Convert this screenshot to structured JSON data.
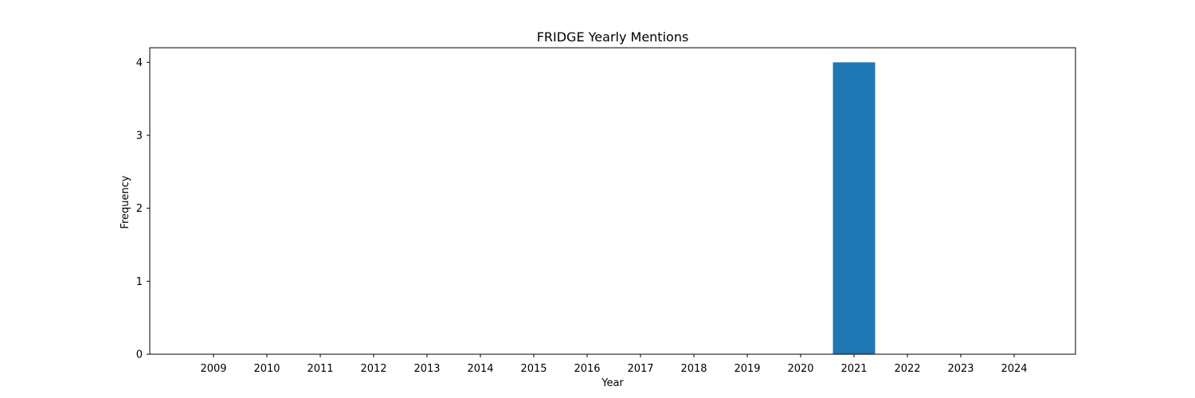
{
  "chart_data": {
    "type": "bar",
    "title": "FRIDGE Yearly Mentions",
    "xlabel": "Year",
    "ylabel": "Frequency",
    "categories": [
      "2009",
      "2010",
      "2011",
      "2012",
      "2013",
      "2014",
      "2015",
      "2016",
      "2017",
      "2018",
      "2019",
      "2020",
      "2021",
      "2022",
      "2023",
      "2024"
    ],
    "values": [
      0,
      0,
      0,
      0,
      0,
      0,
      0,
      0,
      0,
      0,
      0,
      0,
      4,
      0,
      0,
      0
    ],
    "ylim": [
      0,
      4.2
    ],
    "yticks": [
      0,
      1,
      2,
      3,
      4
    ],
    "grid": false,
    "bar_color": "#1f77b4"
  }
}
